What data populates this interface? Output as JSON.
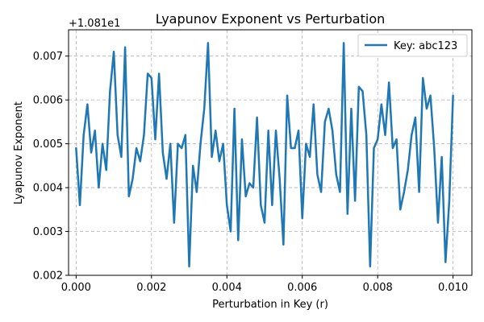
{
  "chart_data": {
    "type": "line",
    "title": "Lyapunov Exponent vs Perturbation",
    "xlabel": "Perturbation in Key (r)",
    "ylabel": "Lyapunov Exponent",
    "offset_label": "+1.081e1",
    "xlim": [
      -0.0002,
      0.0105
    ],
    "ylim": [
      0.002,
      0.0076
    ],
    "xticks": [
      0.0,
      0.002,
      0.004,
      0.006,
      0.008,
      0.01
    ],
    "xtick_labels": [
      "0.000",
      "0.002",
      "0.004",
      "0.006",
      "0.008",
      "0.010"
    ],
    "yticks": [
      0.002,
      0.003,
      0.004,
      0.005,
      0.006,
      0.007
    ],
    "ytick_labels": [
      "0.002",
      "0.003",
      "0.004",
      "0.005",
      "0.006",
      "0.007"
    ],
    "grid": true,
    "legend_position": "upper-right",
    "series": [
      {
        "name": "Key: abc123",
        "color": "#1f77b4",
        "x": [
          0.0,
          0.0001,
          0.0002,
          0.0003,
          0.0004,
          0.0005,
          0.0006,
          0.0007,
          0.0008,
          0.0009,
          0.001,
          0.0011,
          0.0012,
          0.0013,
          0.0014,
          0.0015,
          0.0016,
          0.0017,
          0.0018,
          0.0019,
          0.002,
          0.0021,
          0.0022,
          0.0023,
          0.0024,
          0.0025,
          0.0026,
          0.0027,
          0.0028,
          0.0029,
          0.003,
          0.0031,
          0.0032,
          0.0033,
          0.0034,
          0.0035,
          0.0036,
          0.0037,
          0.0038,
          0.0039,
          0.004,
          0.0041,
          0.0042,
          0.0043,
          0.0044,
          0.0045,
          0.0046,
          0.0047,
          0.0048,
          0.0049,
          0.005,
          0.0051,
          0.0052,
          0.0053,
          0.0054,
          0.0055,
          0.0056,
          0.0057,
          0.0058,
          0.0059,
          0.006,
          0.0061,
          0.0062,
          0.0063,
          0.0064,
          0.0065,
          0.0066,
          0.0067,
          0.0068,
          0.0069,
          0.007,
          0.0071,
          0.0072,
          0.0073,
          0.0074,
          0.0075,
          0.0076,
          0.0077,
          0.0078,
          0.0079,
          0.008,
          0.0081,
          0.0082,
          0.0083,
          0.0084,
          0.0085,
          0.0086,
          0.0087,
          0.0088,
          0.0089,
          0.009,
          0.0091,
          0.0092,
          0.0093,
          0.0094,
          0.0095,
          0.0096,
          0.0097,
          0.0098,
          0.0099,
          0.01
        ],
        "y": [
          0.0049,
          0.0036,
          0.0052,
          0.0059,
          0.0048,
          0.0053,
          0.004,
          0.005,
          0.0044,
          0.0062,
          0.0071,
          0.0052,
          0.0047,
          0.0072,
          0.0038,
          0.0042,
          0.0049,
          0.0046,
          0.0052,
          0.0066,
          0.0065,
          0.0051,
          0.0066,
          0.0048,
          0.0042,
          0.005,
          0.0032,
          0.005,
          0.0049,
          0.0052,
          0.0022,
          0.0045,
          0.0039,
          0.005,
          0.0058,
          0.0073,
          0.0047,
          0.0053,
          0.0046,
          0.005,
          0.0036,
          0.003,
          0.0058,
          0.0028,
          0.0051,
          0.0038,
          0.0041,
          0.004,
          0.0056,
          0.0036,
          0.0032,
          0.0053,
          0.0036,
          0.0053,
          0.0042,
          0.0027,
          0.0061,
          0.0049,
          0.0049,
          0.0053,
          0.0033,
          0.005,
          0.0047,
          0.0059,
          0.0043,
          0.0039,
          0.0055,
          0.0058,
          0.0053,
          0.0043,
          0.0039,
          0.0073,
          0.0034,
          0.0058,
          0.0037,
          0.0063,
          0.0062,
          0.0052,
          0.0022,
          0.0049,
          0.0051,
          0.0059,
          0.0052,
          0.0064,
          0.0049,
          0.0051,
          0.0035,
          0.0039,
          0.0044,
          0.0052,
          0.0056,
          0.0039,
          0.0065,
          0.0058,
          0.0061,
          0.0049,
          0.0032,
          0.0047,
          0.0023,
          0.0037,
          0.0061
        ]
      }
    ]
  }
}
